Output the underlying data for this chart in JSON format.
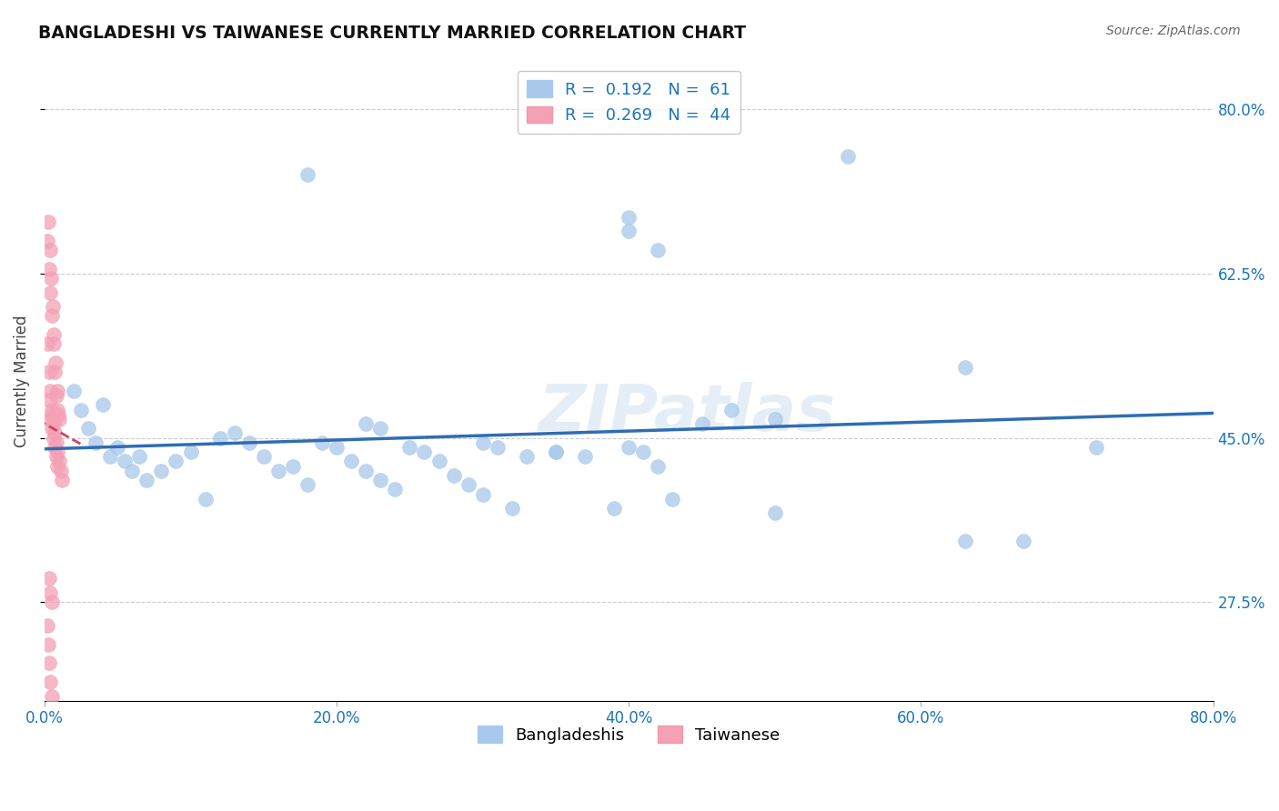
{
  "title": "BANGLADESHI VS TAIWANESE CURRENTLY MARRIED CORRELATION CHART",
  "source": "Source: ZipAtlas.com",
  "ylabel": "Currently Married",
  "x_tick_labels": [
    "0.0%",
    "20.0%",
    "40.0%",
    "60.0%",
    "80.0%"
  ],
  "x_tick_values": [
    0.0,
    20.0,
    40.0,
    60.0,
    80.0
  ],
  "y_tick_labels": [
    "27.5%",
    "45.0%",
    "62.5%",
    "80.0%"
  ],
  "y_tick_values": [
    27.5,
    45.0,
    62.5,
    80.0
  ],
  "xlim": [
    0.0,
    80.0
  ],
  "ylim": [
    17.0,
    85.0
  ],
  "blue_R": 0.192,
  "blue_N": 61,
  "pink_R": 0.269,
  "pink_N": 44,
  "blue_label": "Bangladeshis",
  "pink_label": "Taiwanese",
  "blue_color": "#A8C8EC",
  "pink_color": "#F4A0B5",
  "blue_line_color": "#2E6DB4",
  "pink_line_color": "#D44060",
  "legend_R_color": "#1B75BB",
  "watermark": "ZIPatlas",
  "blue_x": [
    2.0,
    2.5,
    3.0,
    3.5,
    4.0,
    4.5,
    5.0,
    5.5,
    6.0,
    6.5,
    7.0,
    8.0,
    9.0,
    10.0,
    11.0,
    12.0,
    13.0,
    14.0,
    15.0,
    16.0,
    17.0,
    18.0,
    19.0,
    20.0,
    21.0,
    22.0,
    23.0,
    24.0,
    25.0,
    26.0,
    27.0,
    28.0,
    29.0,
    30.0,
    31.0,
    32.0,
    33.0,
    35.0,
    37.0,
    39.0,
    41.0,
    43.0,
    45.0,
    47.0,
    50.0,
    22.0,
    23.0,
    30.0,
    35.0,
    40.0,
    42.0,
    18.0,
    40.0,
    55.0,
    63.0,
    67.0,
    72.0,
    40.0,
    42.0,
    50.0,
    63.0
  ],
  "blue_y": [
    50.0,
    48.0,
    46.0,
    44.5,
    48.5,
    43.0,
    44.0,
    42.5,
    41.5,
    43.0,
    40.5,
    41.5,
    42.5,
    43.5,
    38.5,
    45.0,
    45.5,
    44.5,
    43.0,
    41.5,
    42.0,
    40.0,
    44.5,
    44.0,
    42.5,
    41.5,
    40.5,
    39.5,
    44.0,
    43.5,
    42.5,
    41.0,
    40.0,
    39.0,
    44.0,
    37.5,
    43.0,
    43.5,
    43.0,
    37.5,
    43.5,
    38.5,
    46.5,
    48.0,
    37.0,
    46.5,
    46.0,
    44.5,
    43.5,
    44.0,
    42.0,
    73.0,
    68.5,
    75.0,
    52.5,
    34.0,
    44.0,
    67.0,
    65.0,
    47.0,
    34.0
  ],
  "pink_x": [
    0.2,
    0.3,
    0.4,
    0.5,
    0.6,
    0.7,
    0.8,
    0.9,
    1.0,
    0.25,
    0.35,
    0.45,
    0.55,
    0.65,
    0.75,
    0.85,
    0.95,
    0.3,
    0.4,
    0.5,
    0.6,
    0.7,
    0.8,
    0.9,
    0.5,
    0.6,
    0.7,
    0.8,
    0.9,
    1.0,
    1.1,
    1.2,
    0.3,
    0.4,
    0.5,
    0.2,
    0.25,
    0.3,
    0.4,
    0.5,
    0.2,
    0.3,
    0.4,
    0.5
  ],
  "pink_y": [
    66.0,
    63.0,
    60.5,
    58.0,
    55.0,
    52.0,
    49.5,
    48.0,
    47.0,
    68.0,
    65.0,
    62.0,
    59.0,
    56.0,
    53.0,
    50.0,
    47.5,
    49.0,
    47.0,
    46.0,
    45.0,
    44.0,
    43.0,
    42.0,
    47.5,
    46.5,
    45.5,
    44.5,
    43.5,
    42.5,
    41.5,
    40.5,
    30.0,
    28.5,
    27.5,
    25.0,
    23.0,
    21.0,
    19.0,
    17.5,
    55.0,
    52.0,
    50.0,
    48.0
  ]
}
